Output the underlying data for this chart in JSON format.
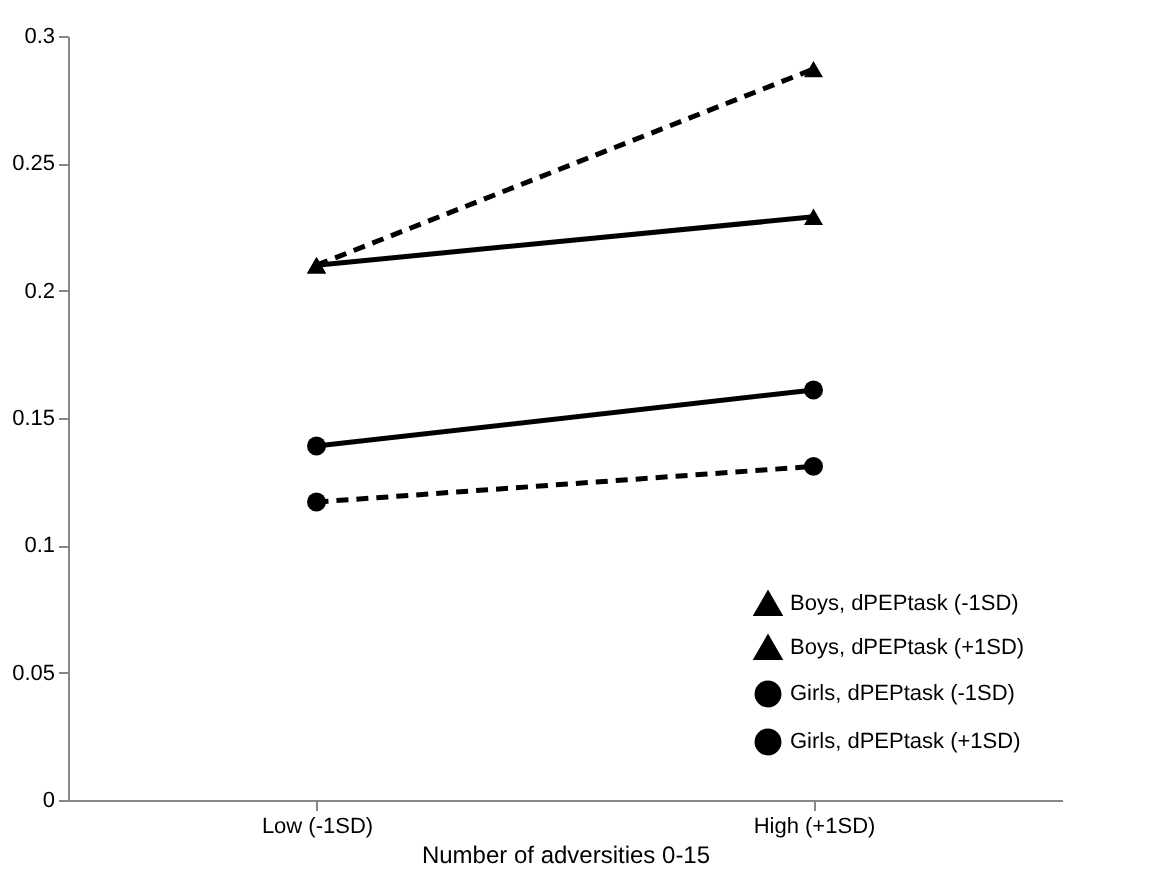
{
  "chart_data": {
    "type": "line",
    "xlabel": "Number of adversities 0-15",
    "categories": [
      "Low (-1SD)",
      "High (+1SD)"
    ],
    "ylim": [
      0,
      0.3
    ],
    "yticks": [
      0,
      0.05,
      0.1,
      0.15,
      0.2,
      0.25,
      0.3
    ],
    "grid": false,
    "legend": "bottom right",
    "series": [
      {
        "name": "Boys, dPEPtask (-1SD)",
        "color": "#000000",
        "values": [
          0.21,
          0.287
        ],
        "marker": "triangle",
        "line_style": "dashed"
      },
      {
        "name": "Boys, dPEPtask (+1SD)",
        "color": "#000000",
        "values": [
          0.21,
          0.229
        ],
        "marker": "triangle",
        "line_style": "solid"
      },
      {
        "name": "Girls, dPEPtask (-1SD)",
        "color": "#000000",
        "values": [
          0.117,
          0.131
        ],
        "marker": "circle",
        "line_style": "dashed"
      },
      {
        "name": "Girls, dPEPtask (+1SD)",
        "color": "#000000",
        "values": [
          0.139,
          0.161
        ],
        "marker": "circle",
        "line_style": "solid"
      }
    ]
  }
}
